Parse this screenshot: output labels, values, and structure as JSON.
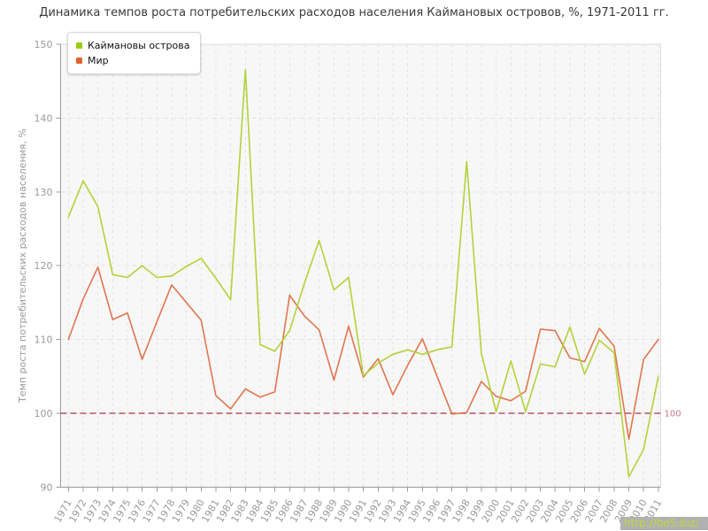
{
  "page": {
    "title": "Динамика темпов роста потребительских расходов населения Каймановых островов, %, 1971-2011 гг.",
    "watermark": "http://be5.biz/"
  },
  "chart_data": {
    "type": "line",
    "title": "Динамика темпов роста потребительских расходов населения Каймановых островов, %, 1971-2011 гг.",
    "xlabel": "",
    "ylabel": "Темп роста потребительских расходов населения, %",
    "ylim": [
      90,
      150
    ],
    "yticks": [
      90,
      100,
      110,
      120,
      130,
      140,
      150
    ],
    "grid": true,
    "legend_position": "top-left",
    "reference_line": {
      "value": 100,
      "label": "100",
      "color": "#b25565",
      "label_color": "#cc7788"
    },
    "x": [
      1971,
      1972,
      1973,
      1974,
      1975,
      1976,
      1977,
      1978,
      1979,
      1980,
      1981,
      1982,
      1983,
      1984,
      1985,
      1986,
      1987,
      1988,
      1989,
      1990,
      1991,
      1992,
      1993,
      1994,
      1995,
      1996,
      1997,
      1998,
      1999,
      2000,
      2001,
      2002,
      2003,
      2004,
      2005,
      2006,
      2007,
      2008,
      2009,
      2010,
      2011
    ],
    "series": [
      {
        "name": "Каймановы острова",
        "color": "#b3d23b",
        "marker_color": "#99cc11",
        "values": [
          126.6,
          131.5,
          128.0,
          118.8,
          118.4,
          120.0,
          118.4,
          118.6,
          119.9,
          121.0,
          118.3,
          115.4,
          146.6,
          109.3,
          108.4,
          111.2,
          117.6,
          123.4,
          116.7,
          118.4,
          105.1,
          106.8,
          108.0,
          108.6,
          108.0,
          108.6,
          109.0,
          134.1,
          108.1,
          100.2,
          107.1,
          100.2,
          106.7,
          106.3,
          111.7,
          105.3,
          109.9,
          108.2,
          91.4,
          95.1,
          105.0
        ]
      },
      {
        "name": "Мир",
        "color": "#e0764e",
        "marker_color": "#e2622f",
        "values": [
          110.0,
          115.5,
          119.8,
          112.7,
          113.6,
          107.3,
          112.4,
          117.4,
          115.0,
          112.6,
          102.4,
          100.6,
          103.3,
          102.2,
          102.9,
          116.0,
          113.2,
          111.3,
          104.5,
          111.8,
          104.9,
          107.4,
          102.5,
          106.5,
          110.1,
          105.0,
          99.9,
          100.1,
          104.3,
          102.3,
          101.7,
          103.0,
          111.4,
          111.2,
          107.5,
          107.0,
          111.5,
          109.1,
          96.5,
          107.3,
          110.0
        ]
      }
    ],
    "axis_color": "#9a9a9a",
    "tick_label_color": "#9a9a9a",
    "gridline_color": "#e3e3e3",
    "plot_background": "#f7f7f7",
    "plot_border_color": "#dcdcdc"
  }
}
